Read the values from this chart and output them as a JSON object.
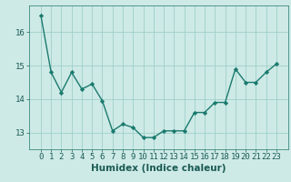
{
  "x": [
    0,
    1,
    2,
    3,
    4,
    5,
    6,
    7,
    8,
    9,
    10,
    11,
    12,
    13,
    14,
    15,
    16,
    17,
    18,
    19,
    20,
    21,
    22,
    23
  ],
  "y": [
    16.5,
    14.8,
    14.2,
    14.8,
    14.3,
    14.45,
    13.95,
    13.05,
    13.25,
    13.15,
    12.85,
    12.85,
    13.05,
    13.05,
    13.05,
    13.6,
    13.6,
    13.9,
    13.9,
    14.9,
    14.5,
    14.5,
    14.8,
    15.05
  ],
  "line_color": "#1a7a6e",
  "marker": "D",
  "marker_size": 2.2,
  "bg_color": "#ceeae6",
  "grid_color": "#9ecfca",
  "xlabel": "Humidex (Indice chaleur)",
  "xlabel_fontsize": 7.5,
  "tick_fontsize": 6.5,
  "ylim": [
    12.5,
    16.8
  ],
  "yticks": [
    13,
    14,
    15,
    16
  ],
  "xticks": [
    0,
    1,
    2,
    3,
    4,
    5,
    6,
    7,
    8,
    9,
    10,
    11,
    12,
    13,
    14,
    15,
    16,
    17,
    18,
    19,
    20,
    21,
    22,
    23
  ],
  "line_width": 1.0,
  "spine_color": "#3a8a80",
  "tick_color": "#1a5a54"
}
